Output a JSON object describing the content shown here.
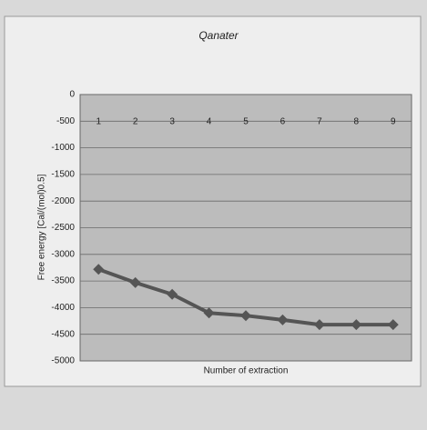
{
  "chart_data": {
    "type": "line",
    "title": "Qanater",
    "x_label": "Number of extraction",
    "y_label": "Free energy [Cal/(mol)0.5]",
    "categories": [
      "1",
      "2",
      "3",
      "4",
      "5",
      "6",
      "7",
      "8",
      "9"
    ],
    "series": [
      {
        "name": "Qanater",
        "color": "#555555",
        "values": [
          -3280,
          -3530,
          -3750,
          -4100,
          -4150,
          -4230,
          -4320,
          -4320,
          -4320
        ]
      }
    ],
    "ylim": [
      -5000,
      0
    ],
    "yticks": [
      0,
      -500,
      -1000,
      -1500,
      -2000,
      -2500,
      -3000,
      -3500,
      -4000,
      -4500,
      -5000
    ],
    "grid": true
  }
}
